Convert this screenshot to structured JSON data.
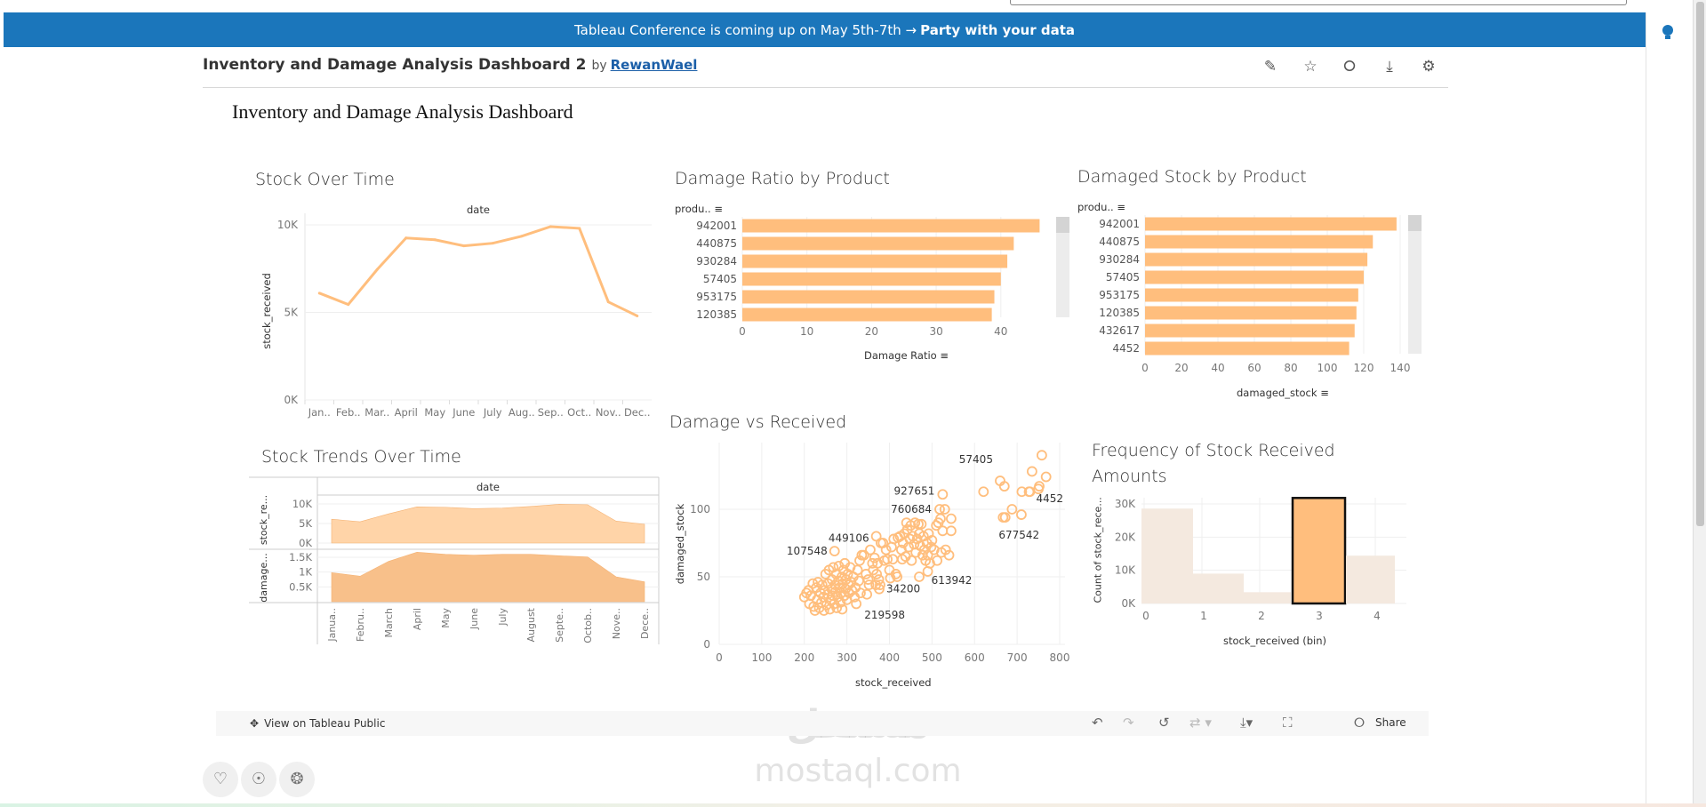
{
  "banner": {
    "text": "Tableau Conference is coming up on May 5th-7th →",
    "bold": "Party with your data"
  },
  "header": {
    "title": "Inventory and Damage Analysis Dashboard 2",
    "by": "by",
    "author": "RewanWael",
    "icons": [
      "edit-icon",
      "star-icon",
      "share-icon",
      "download-icon",
      "settings-icon"
    ]
  },
  "dashboard_title": "Inventory and Damage Analysis Dashboard",
  "colors": {
    "accent": "#1b76bb",
    "series": "#ffbe7d",
    "series_dark": "#f7b57a",
    "hist_muted": "#f4e9df"
  },
  "chart_data": [
    {
      "id": "stock_over_time",
      "type": "line",
      "title": "Stock Over Time",
      "column_header": "date",
      "ylabel": "stock_received",
      "categories": [
        "Jan..",
        "Feb..",
        "Mar..",
        "April",
        "May",
        "June",
        "July",
        "Aug..",
        "Sep..",
        "Oct..",
        "Nov..",
        "Dec.."
      ],
      "values": [
        6100,
        5450,
        7450,
        9250,
        9150,
        8800,
        8950,
        9350,
        9900,
        9800,
        5600,
        4800
      ],
      "yticks": [
        "10K",
        "5K",
        "0K"
      ],
      "ylim": [
        0,
        10000
      ],
      "grid": true
    },
    {
      "id": "damage_ratio",
      "type": "bar",
      "orientation": "horizontal",
      "title": "Damage Ratio by Product",
      "row_header": "produ..",
      "xlabel": "Damage Ratio",
      "categories": [
        "942001",
        "440875",
        "930284",
        "57405",
        "953175",
        "120385"
      ],
      "values": [
        46.0,
        42.0,
        41.0,
        40.0,
        39.0,
        38.6
      ],
      "xticks": [
        "0",
        "10",
        "20",
        "30",
        "40"
      ],
      "xlim": [
        0,
        48
      ],
      "grid": true
    },
    {
      "id": "damaged_stock",
      "type": "bar",
      "orientation": "horizontal",
      "title": "Damaged Stock by Product",
      "row_header": "produ..",
      "xlabel": "damaged_stock",
      "categories": [
        "942001",
        "440875",
        "930284",
        "57405",
        "953175",
        "120385",
        "432617",
        "4452"
      ],
      "values": [
        138,
        125,
        122,
        120,
        117,
        116,
        115,
        112
      ],
      "xticks": [
        "0",
        "20",
        "40",
        "60",
        "80",
        "100",
        "120",
        "140"
      ],
      "xlim": [
        0,
        145
      ],
      "grid": true
    },
    {
      "id": "stock_trends",
      "type": "area",
      "title": "Stock Trends Over Time",
      "column_header": "date",
      "categories": [
        "Janua..",
        "Febru..",
        "March",
        "April",
        "May",
        "June",
        "July",
        "August",
        "Septe..",
        "Octob..",
        "Nove..",
        "Dece.."
      ],
      "series": [
        {
          "name": "stock_re...",
          "values": [
            6100,
            5450,
            7450,
            9250,
            9150,
            8800,
            8950,
            9350,
            9900,
            9800,
            5600,
            4800
          ],
          "yticks": [
            "10K",
            "5K",
            "0K"
          ],
          "ylim": [
            0,
            10000
          ]
        },
        {
          "name": "damage...",
          "values": [
            980,
            860,
            1360,
            1670,
            1600,
            1570,
            1600,
            1600,
            1550,
            1510,
            840,
            670
          ],
          "yticks": [
            "1.5K",
            "1K",
            "0.5K"
          ],
          "ylim": [
            0,
            1500
          ]
        }
      ]
    },
    {
      "id": "damage_vs_received",
      "type": "scatter",
      "title": "Damage vs Received",
      "xlabel": "stock_received",
      "ylabel": "damaged_stock",
      "xticks": [
        "0",
        "100",
        "200",
        "300",
        "400",
        "500",
        "600",
        "700",
        "800"
      ],
      "yticks": [
        "100",
        "50",
        "0"
      ],
      "xlim": [
        0,
        800
      ],
      "ylim": [
        0,
        140
      ],
      "labeled": [
        {
          "label": "57405",
          "x": 660,
          "y": 121
        },
        {
          "label": "927651",
          "x": 525,
          "y": 111
        },
        {
          "label": "760684",
          "x": 518,
          "y": 100
        },
        {
          "label": "4452",
          "x": 728,
          "y": 113
        },
        {
          "label": "677542",
          "x": 667,
          "y": 94
        },
        {
          "label": "449106",
          "x": 369,
          "y": 80
        },
        {
          "label": "107548",
          "x": 271,
          "y": 69
        },
        {
          "label": "34200",
          "x": 376,
          "y": 41
        },
        {
          "label": "613942",
          "x": 490,
          "y": 54
        },
        {
          "label": "219598",
          "x": 347,
          "y": 37
        }
      ],
      "points": [
        [
          200,
          35
        ],
        [
          205,
          38
        ],
        [
          210,
          40
        ],
        [
          212,
          30
        ],
        [
          215,
          36
        ],
        [
          220,
          45
        ],
        [
          222,
          28
        ],
        [
          225,
          25
        ],
        [
          228,
          42
        ],
        [
          230,
          33
        ],
        [
          232,
          46
        ],
        [
          235,
          27
        ],
        [
          238,
          38
        ],
        [
          240,
          31
        ],
        [
          242,
          44
        ],
        [
          245,
          35
        ],
        [
          246,
          25
        ],
        [
          248,
          40
        ],
        [
          250,
          52
        ],
        [
          252,
          29
        ],
        [
          255,
          37
        ],
        [
          256,
          45
        ],
        [
          258,
          55
        ],
        [
          260,
          26
        ],
        [
          262,
          33
        ],
        [
          264,
          41
        ],
        [
          265,
          48
        ],
        [
          267,
          36
        ],
        [
          268,
          57
        ],
        [
          270,
          30
        ],
        [
          272,
          44
        ],
        [
          273,
          39
        ],
        [
          275,
          52
        ],
        [
          276,
          27
        ],
        [
          278,
          35
        ],
        [
          280,
          47
        ],
        [
          281,
          58
        ],
        [
          283,
          42
        ],
        [
          285,
          31
        ],
        [
          286,
          38
        ],
        [
          288,
          50
        ],
        [
          289,
          26
        ],
        [
          290,
          45
        ],
        [
          292,
          55
        ],
        [
          294,
          36
        ],
        [
          295,
          60
        ],
        [
          297,
          41
        ],
        [
          298,
          48
        ],
        [
          300,
          33
        ],
        [
          302,
          52
        ],
        [
          304,
          44
        ],
        [
          305,
          38
        ],
        [
          308,
          57
        ],
        [
          310,
          46
        ],
        [
          312,
          40
        ],
        [
          315,
          50
        ],
        [
          318,
          35
        ],
        [
          320,
          42
        ],
        [
          322,
          30
        ],
        [
          325,
          55
        ],
        [
          328,
          47
        ],
        [
          330,
          62
        ],
        [
          332,
          38
        ],
        [
          335,
          66
        ],
        [
          340,
          66
        ],
        [
          345,
          52
        ],
        [
          350,
          48
        ],
        [
          352,
          44
        ],
        [
          355,
          70
        ],
        [
          360,
          60
        ],
        [
          362,
          55
        ],
        [
          365,
          64
        ],
        [
          368,
          44
        ],
        [
          370,
          52
        ],
        [
          372,
          60
        ],
        [
          375,
          48
        ],
        [
          378,
          44
        ],
        [
          380,
          75
        ],
        [
          385,
          75
        ],
        [
          388,
          62
        ],
        [
          392,
          70
        ],
        [
          395,
          63
        ],
        [
          400,
          55
        ],
        [
          402,
          49
        ],
        [
          405,
          72
        ],
        [
          408,
          63
        ],
        [
          410,
          78
        ],
        [
          415,
          52
        ],
        [
          418,
          50
        ],
        [
          420,
          79
        ],
        [
          425,
          80
        ],
        [
          428,
          70
        ],
        [
          430,
          63
        ],
        [
          432,
          75
        ],
        [
          435,
          82
        ],
        [
          438,
          65
        ],
        [
          440,
          90
        ],
        [
          442,
          85
        ],
        [
          445,
          72
        ],
        [
          448,
          78
        ],
        [
          450,
          88
        ],
        [
          452,
          62
        ],
        [
          455,
          80
        ],
        [
          458,
          74
        ],
        [
          460,
          90
        ],
        [
          462,
          68
        ],
        [
          465,
          78
        ],
        [
          468,
          89
        ],
        [
          470,
          82
        ],
        [
          472,
          73
        ],
        [
          475,
          89
        ],
        [
          478,
          66
        ],
        [
          480,
          80
        ],
        [
          482,
          70
        ],
        [
          485,
          62
        ],
        [
          488,
          75
        ],
        [
          490,
          66
        ],
        [
          492,
          82
        ],
        [
          495,
          60
        ],
        [
          498,
          72
        ],
        [
          500,
          77
        ],
        [
          505,
          70
        ],
        [
          510,
          88
        ],
        [
          512,
          62
        ],
        [
          515,
          90
        ],
        [
          520,
          93
        ],
        [
          522,
          68
        ],
        [
          525,
          84
        ],
        [
          530,
          100
        ],
        [
          532,
          70
        ],
        [
          545,
          93
        ],
        [
          545,
          84
        ],
        [
          540,
          66
        ],
        [
          470,
          50
        ],
        [
          621,
          113
        ],
        [
          670,
          117
        ],
        [
          672,
          94
        ],
        [
          688,
          100
        ],
        [
          711,
          113
        ],
        [
          710,
          96
        ],
        [
          730,
          113
        ],
        [
          735,
          128
        ],
        [
          750,
          115
        ],
        [
          752,
          117
        ],
        [
          758,
          140
        ],
        [
          768,
          124
        ]
      ]
    },
    {
      "id": "stock_frequency",
      "type": "bar",
      "title": "Frequency of Stock Received Amounts",
      "xlabel": "stock_received (bin)",
      "ylabel": "Count of stock_rece...",
      "categories": [
        "0",
        "1",
        "2",
        "3",
        "4"
      ],
      "values": [
        28600,
        9000,
        3400,
        31800,
        14400
      ],
      "highlighted": "3",
      "yticks": [
        "30K",
        "20K",
        "10K",
        "0K"
      ],
      "ylim": [
        0,
        32000
      ],
      "grid": true
    }
  ],
  "toolbar": {
    "view_on": "View on Tableau Public",
    "share": "Share",
    "icons": [
      "undo-icon",
      "redo-icon",
      "revert-icon",
      "refresh-icon",
      "download-icon",
      "fullscreen-icon",
      "share-icon"
    ]
  },
  "footer_icons": [
    "heart-icon",
    "bulb-icon",
    "badge-icon"
  ],
  "watermark": {
    "arabic": "مستقل",
    "latin": "mostaql.com"
  }
}
